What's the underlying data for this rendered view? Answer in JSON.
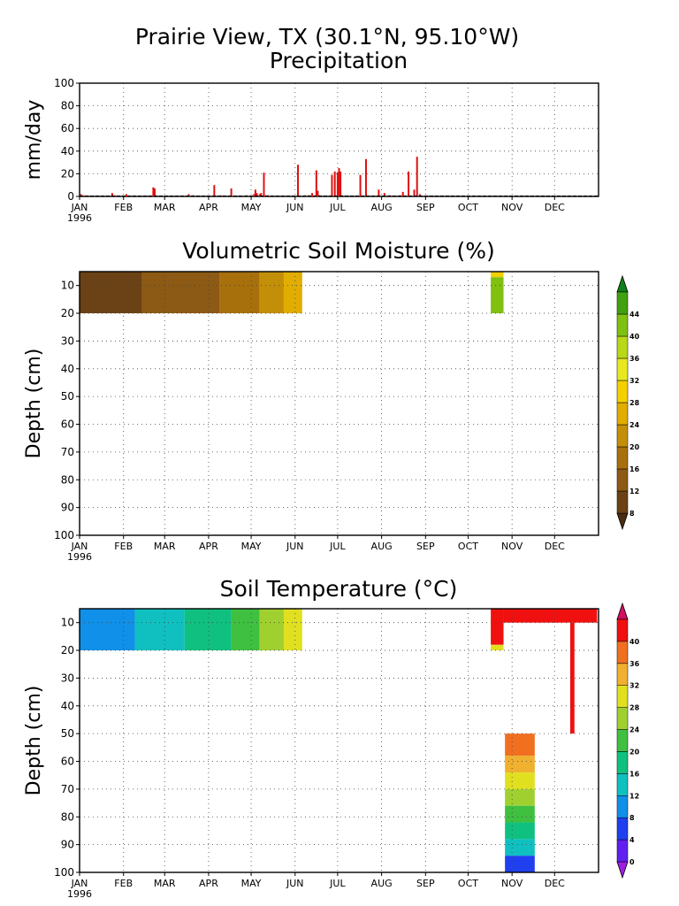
{
  "figure": {
    "title_line1": "Prairie View, TX (30.1°N, 95.10°W)",
    "title_line2": "Precipitation"
  },
  "chart_data": [
    {
      "type": "bar",
      "title": "Precipitation",
      "ylabel": "mm/day",
      "xlabel": "",
      "ylim": [
        0,
        100
      ],
      "yticks": [
        "0",
        "20",
        "40",
        "60",
        "80",
        "100"
      ],
      "xticks": [
        "JAN",
        "FEB",
        "MAR",
        "APR",
        "MAY",
        "JUN",
        "JUL",
        "AUG",
        "SEP",
        "OCT",
        "NOV",
        "DEC"
      ],
      "year_label": "1996",
      "grid": true,
      "bar_color": "#e01010",
      "series": [
        {
          "x_day_of_year": [
            2,
            4,
            24,
            26,
            34,
            53,
            54,
            78,
            81,
            96,
            101,
            108,
            119,
            124,
            125,
            126,
            128,
            129,
            131,
            132,
            134,
            155,
            160,
            163,
            165,
            168,
            169,
            170,
            179,
            181,
            183,
            184,
            185,
            186,
            199,
            203,
            212,
            216,
            220,
            227,
            229,
            233,
            237,
            239,
            241
          ],
          "values": [
            2,
            1,
            3,
            1,
            2,
            8,
            7,
            2,
            1,
            10,
            1,
            7,
            1,
            2,
            6,
            3,
            2,
            3,
            21,
            1,
            1,
            28,
            1,
            1,
            3,
            23,
            5,
            1,
            19,
            22,
            21,
            25,
            22,
            1,
            19,
            33,
            6,
            3,
            1,
            1,
            4,
            22,
            6,
            35,
            2
          ]
        }
      ]
    },
    {
      "type": "heatmap",
      "title": "Volumetric Soil Moisture (%)",
      "ylabel": "Depth (cm)",
      "xlabel": "",
      "ylim": [
        100,
        5
      ],
      "yticks": [
        "10",
        "20",
        "30",
        "40",
        "50",
        "60",
        "70",
        "80",
        "90",
        "100"
      ],
      "xticks": [
        "JAN",
        "FEB",
        "MAR",
        "APR",
        "MAY",
        "JUN",
        "JUL",
        "AUG",
        "SEP",
        "OCT",
        "NOV",
        "DEC"
      ],
      "year_label": "1996",
      "grid": true,
      "colorbar": {
        "labels": [
          "8",
          "12",
          "16",
          "20",
          "24",
          "28",
          "32",
          "36",
          "40",
          "44"
        ],
        "colors": [
          "#4a2c10",
          "#6b4215",
          "#8c5a14",
          "#a8700c",
          "#c48f08",
          "#e0ad00",
          "#f4d000",
          "#e8e820",
          "#b8d818",
          "#80c010",
          "#40a010",
          "#108018"
        ]
      },
      "blocks": [
        {
          "day_start": 1,
          "day_end": 45,
          "depth_top": 5,
          "depth_bottom": 20,
          "value": 10
        },
        {
          "day_start": 45,
          "day_end": 100,
          "depth_top": 5,
          "depth_bottom": 20,
          "value": 13
        },
        {
          "day_start": 100,
          "day_end": 128,
          "depth_top": 5,
          "depth_bottom": 20,
          "value": 17
        },
        {
          "day_start": 128,
          "day_end": 145,
          "depth_top": 5,
          "depth_bottom": 20,
          "value": 22
        },
        {
          "day_start": 145,
          "day_end": 158,
          "depth_top": 5,
          "depth_bottom": 20,
          "value": 26
        },
        {
          "day_start": 291,
          "day_end": 300,
          "depth_top": 5,
          "depth_bottom": 7,
          "value": 30
        },
        {
          "day_start": 291,
          "day_end": 300,
          "depth_top": 7,
          "depth_bottom": 20,
          "value": 42
        }
      ]
    },
    {
      "type": "heatmap",
      "title": "Soil Temperature (°C)",
      "ylabel": "Depth (cm)",
      "xlabel": "",
      "ylim": [
        100,
        5
      ],
      "yticks": [
        "10",
        "20",
        "30",
        "40",
        "50",
        "60",
        "70",
        "80",
        "90",
        "100"
      ],
      "xticks": [
        "JAN",
        "FEB",
        "MAR",
        "APR",
        "MAY",
        "JUN",
        "JUL",
        "AUG",
        "SEP",
        "OCT",
        "NOV",
        "DEC"
      ],
      "year_label": "1996",
      "grid": true,
      "colorbar": {
        "labels": [
          "0",
          "4",
          "8",
          "12",
          "16",
          "20",
          "24",
          "28",
          "32",
          "36",
          "40"
        ],
        "colors": [
          "#a020e0",
          "#6020f0",
          "#2040f0",
          "#1090e8",
          "#10c0c0",
          "#10c080",
          "#40c040",
          "#a0d030",
          "#e0e020",
          "#f0b030",
          "#f07020",
          "#f01010",
          "#d01060"
        ]
      },
      "blocks": [
        {
          "day_start": 1,
          "day_end": 40,
          "depth_top": 5,
          "depth_bottom": 20,
          "value": 9
        },
        {
          "day_start": 40,
          "day_end": 75,
          "depth_top": 5,
          "depth_bottom": 20,
          "value": 13
        },
        {
          "day_start": 75,
          "day_end": 108,
          "depth_top": 5,
          "depth_bottom": 20,
          "value": 18
        },
        {
          "day_start": 108,
          "day_end": 128,
          "depth_top": 5,
          "depth_bottom": 20,
          "value": 21
        },
        {
          "day_start": 128,
          "day_end": 145,
          "depth_top": 5,
          "depth_bottom": 20,
          "value": 24
        },
        {
          "day_start": 145,
          "day_end": 158,
          "depth_top": 5,
          "depth_bottom": 20,
          "value": 29
        },
        {
          "day_start": 291,
          "day_end": 300,
          "depth_top": 5,
          "depth_bottom": 18,
          "value": 42
        },
        {
          "day_start": 291,
          "day_end": 300,
          "depth_top": 18,
          "depth_bottom": 20,
          "value": 31
        },
        {
          "day_start": 300,
          "day_end": 366,
          "depth_top": 5,
          "depth_bottom": 10,
          "value": 42
        },
        {
          "day_start": 347,
          "day_end": 350,
          "depth_top": 10,
          "depth_bottom": 50,
          "value": 42
        },
        {
          "day_start": 301,
          "day_end": 322,
          "depth_top": 50,
          "depth_bottom": 58,
          "value": 38
        },
        {
          "day_start": 301,
          "day_end": 322,
          "depth_top": 58,
          "depth_bottom": 64,
          "value": 34
        },
        {
          "day_start": 301,
          "day_end": 322,
          "depth_top": 64,
          "depth_bottom": 70,
          "value": 30
        },
        {
          "day_start": 301,
          "day_end": 322,
          "depth_top": 70,
          "depth_bottom": 76,
          "value": 26
        },
        {
          "day_start": 301,
          "day_end": 322,
          "depth_top": 76,
          "depth_bottom": 82,
          "value": 22
        },
        {
          "day_start": 301,
          "day_end": 322,
          "depth_top": 82,
          "depth_bottom": 88,
          "value": 18
        },
        {
          "day_start": 301,
          "day_end": 322,
          "depth_top": 88,
          "depth_bottom": 94,
          "value": 14
        },
        {
          "day_start": 301,
          "day_end": 322,
          "depth_top": 94,
          "depth_bottom": 100,
          "value": 7
        }
      ]
    }
  ]
}
